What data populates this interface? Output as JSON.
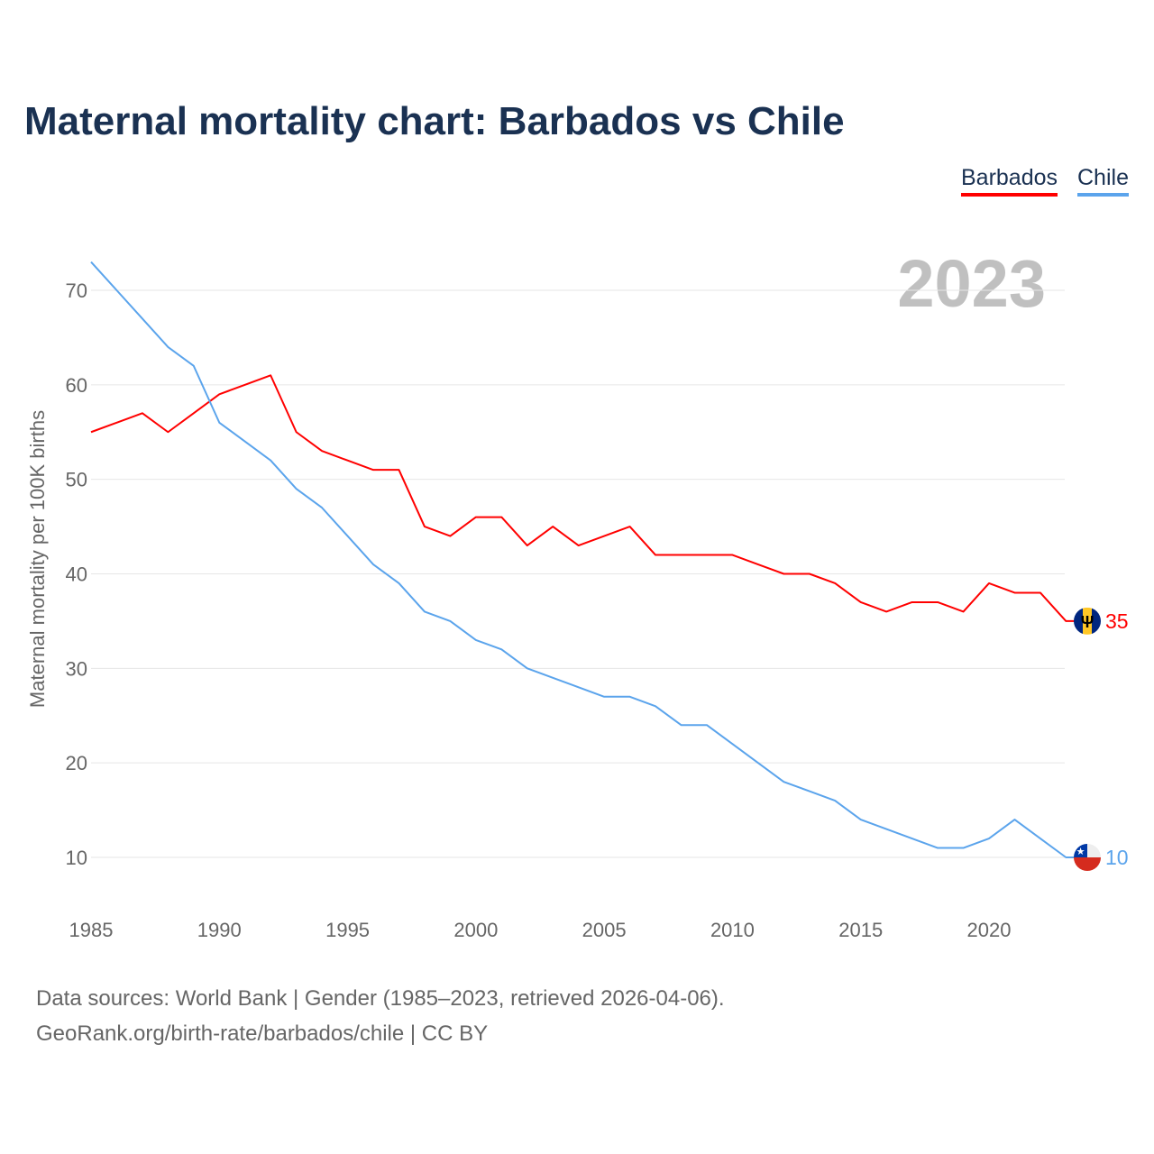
{
  "title": "Maternal mortality chart: Barbados vs Chile",
  "year_label": "2023",
  "source_line1": "Data sources: World Bank | Gender (1985–2023, retrieved 2026-04-06).",
  "source_line2": "GeoRank.org/birth-rate/barbados/chile | CC BY",
  "chart_data": {
    "type": "line",
    "title": "Maternal mortality chart: Barbados vs Chile",
    "xlabel": "",
    "ylabel": "Maternal mortality per 100K births",
    "xlim": [
      1985,
      2023
    ],
    "ylim": [
      5,
      73
    ],
    "xticks": [
      1985,
      1990,
      1995,
      2000,
      2005,
      2010,
      2015,
      2020
    ],
    "yticks": [
      10,
      20,
      30,
      40,
      50,
      60,
      70
    ],
    "grid": true,
    "legend_placement": "top-right",
    "x": [
      1985,
      1986,
      1987,
      1988,
      1989,
      1990,
      1991,
      1992,
      1993,
      1994,
      1995,
      1996,
      1997,
      1998,
      1999,
      2000,
      2001,
      2002,
      2003,
      2004,
      2005,
      2006,
      2007,
      2008,
      2009,
      2010,
      2011,
      2012,
      2013,
      2014,
      2015,
      2016,
      2017,
      2018,
      2019,
      2020,
      2021,
      2022,
      2023
    ],
    "series": [
      {
        "name": "Barbados",
        "color": "#ff0000",
        "end_label": "35",
        "flag": "barbados-flag",
        "values": [
          55,
          56,
          57,
          55,
          57,
          59,
          60,
          61,
          55,
          53,
          52,
          51,
          51,
          45,
          44,
          46,
          46,
          43,
          45,
          43,
          44,
          45,
          42,
          42,
          42,
          42,
          41,
          40,
          40,
          39,
          37,
          36,
          37,
          37,
          36,
          39,
          38,
          38,
          35
        ]
      },
      {
        "name": "Chile",
        "color": "#5ba4ec",
        "end_label": "10",
        "flag": "chile-flag",
        "values": [
          73,
          70,
          67,
          64,
          62,
          56,
          54,
          52,
          49,
          47,
          44,
          41,
          39,
          36,
          35,
          33,
          32,
          30,
          29,
          28,
          27,
          27,
          26,
          24,
          24,
          22,
          20,
          18,
          17,
          16,
          14,
          13,
          12,
          11,
          11,
          12,
          14,
          12,
          10
        ]
      }
    ]
  }
}
